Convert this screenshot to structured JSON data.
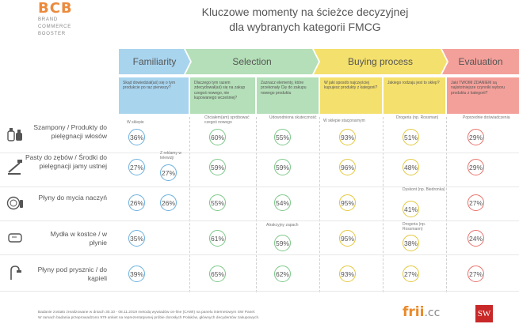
{
  "logo": {
    "main": "BCB",
    "line1": "BRAND",
    "line2": "COMMERCE",
    "line3": "BOOSTER"
  },
  "title": {
    "line1": "Kluczowe momenty na ścieżce decyzyjnej",
    "line2": "dla wybranych kategorii FMCG"
  },
  "stages": {
    "familiarity": "Familiarity",
    "selection": "Selection",
    "buying": "Buying process",
    "evaluation": "Evaluation"
  },
  "questions": {
    "fam": "Skąd dowiedział(aś) się o tym produkcie po raz pierwszy?",
    "sel1": "Dlaczego tym razem zdecydował(aś) się na zakup czegoś nowego, nie kupowanego wcześniej?",
    "sel2": "Zaznacz elementy, które przekonały Cię do zakupu nowego produktu",
    "buy1": "W jaki sposób najczęściej kupujesz produkty z kategorii?",
    "buy2": "Jakiego rodzaju jest to sklep?",
    "eva": "Jaki TWOIM ZDANIEM są najistotniejsze czynniki wyboru produktu z kategorii?"
  },
  "notes": {
    "w_sklepie": "W sklepie",
    "z_reklamy": "Z reklamy w telewizji",
    "chcialem": "Chciałem(am) spróbować czegoś nowego",
    "udowodniona": "Udowodniona skuteczność",
    "atrakcyjny": "Atrakcyjny zapach",
    "stacjonarnym": "W sklepie stacjonarnym",
    "drogeria_rossman": "Drogeria (np. Rossman)",
    "dyskont": "Dyskont (np. Biedronka)",
    "drogeria_rossmann": "Drogeria (np. Rossmann)",
    "poprzednie": "Poprzednie doświadczenia"
  },
  "rows": [
    {
      "label": "Szampony / Produkty do pielęgnacji włosów",
      "icon": "shampoo-icon",
      "fam1": "36%",
      "fam2": "",
      "sel1": "60%",
      "sel2": "55%",
      "buy1": "93%",
      "buy2": "51%",
      "eva": "29%"
    },
    {
      "label": "Pasty do zębów / Środki do pielęgnacji jamy ustnej",
      "icon": "toothbrush-icon",
      "fam1": "27%",
      "fam2": "27%",
      "sel1": "59%",
      "sel2": "59%",
      "buy1": "96%",
      "buy2": "48%",
      "eva": "29%"
    },
    {
      "label": "Płyny do mycia naczyń",
      "icon": "dish-soap-icon",
      "fam1": "26%",
      "fam2": "26%",
      "sel1": "55%",
      "sel2": "54%",
      "buy1": "95%",
      "buy2": "41%",
      "eva": "27%"
    },
    {
      "label": "Mydła w kostce / w płynie",
      "icon": "soap-bar-icon",
      "fam1": "35%",
      "fam2": "",
      "sel1": "61%",
      "sel2": "59%",
      "buy1": "95%",
      "buy2": "38%",
      "eva": "24%"
    },
    {
      "label": "Płyny pod prysznic / do kąpieli",
      "icon": "shower-icon",
      "fam1": "39%",
      "fam2": "",
      "sel1": "65%",
      "sel2": "62%",
      "buy1": "93%",
      "buy2": "27%",
      "eva": "27%"
    }
  ],
  "footer": {
    "line1": "Badanie zostało zrealizowane w dniach 30.10 - 08.11.2019 metodą wywiadów on-line (CAWI) na panelu internetowym SW Panel.",
    "line2": "W ramach badania przeprowadzono 979 ankiet na reprezentatywnej próbie dorosłych Polaków, głównych decydentów zakupowych."
  },
  "brands": {
    "frii": "frii",
    "frii_suffix": ".cc",
    "sw": "SW"
  }
}
